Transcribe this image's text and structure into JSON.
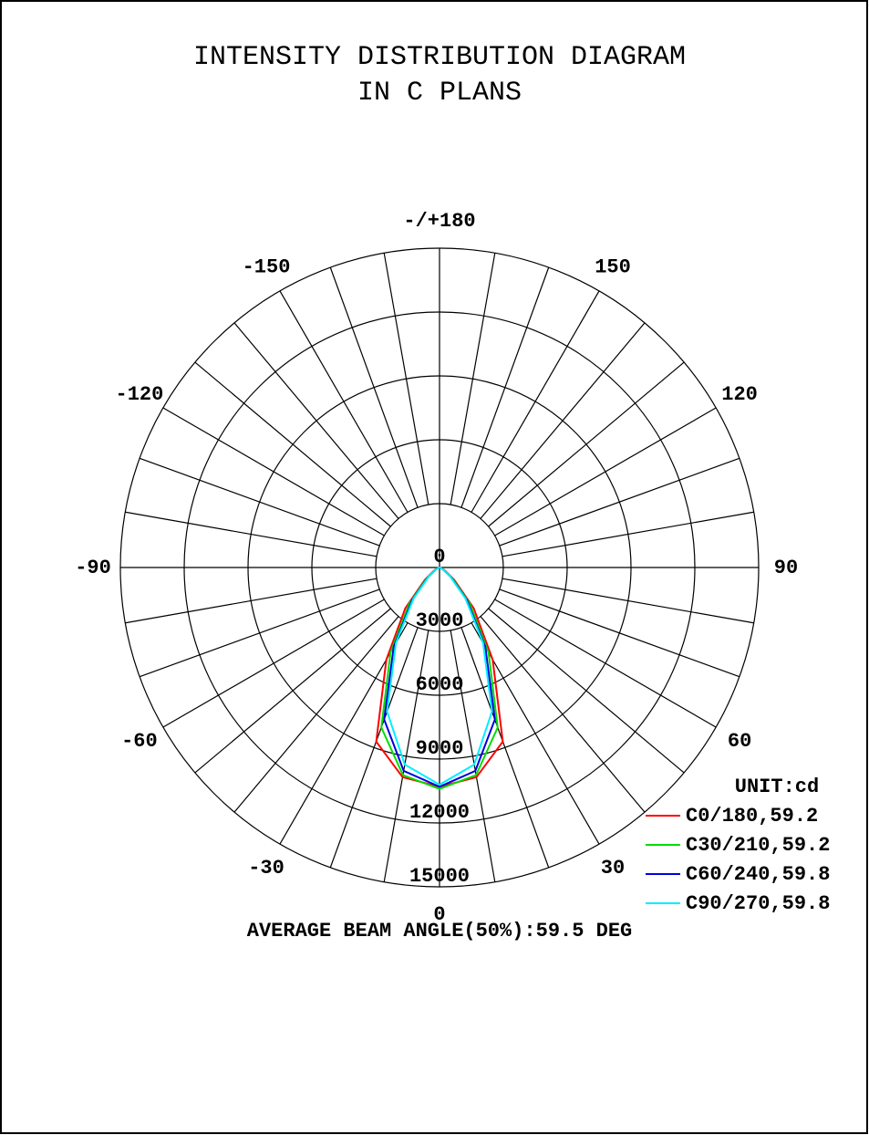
{
  "chart_data": {
    "type": "polar",
    "title": "INTENSITY DISTRIBUTION DIAGRAM",
    "subtitle": "IN C PLANS",
    "unit_label": "UNIT:cd",
    "footer": "AVERAGE BEAM ANGLE(50%):59.5 DEG",
    "rlim": [
      0,
      15000
    ],
    "rticks": [
      0,
      3000,
      6000,
      9000,
      12000,
      15000
    ],
    "thetaticks": [
      {
        "value": 180,
        "label": "-/+180"
      },
      -150,
      -120,
      -90,
      -60,
      -30,
      0,
      30,
      60,
      90,
      120,
      150
    ],
    "theta_grid_step": 10,
    "x": [
      -90,
      -80,
      -70,
      -60,
      -50,
      -40,
      -30,
      -20,
      -10,
      0,
      10,
      20,
      30,
      40,
      50,
      60,
      70,
      80,
      90
    ],
    "series": [
      {
        "name": "C0/180,59.2",
        "color": "#ff0000",
        "values": [
          0,
          0,
          100,
          300,
          900,
          2500,
          5000,
          8700,
          10000,
          10300,
          10000,
          8700,
          5000,
          2500,
          900,
          300,
          100,
          0,
          0
        ]
      },
      {
        "name": "C30/210,59.2",
        "color": "#00dd00",
        "values": [
          0,
          0,
          80,
          250,
          800,
          2200,
          4600,
          8000,
          9900,
          10400,
          9900,
          8000,
          4600,
          2200,
          800,
          250,
          80,
          0,
          0
        ]
      },
      {
        "name": "C60/240,59.8",
        "color": "#0000dd",
        "values": [
          0,
          0,
          70,
          220,
          700,
          2000,
          4300,
          7600,
          9700,
          10300,
          9700,
          7600,
          4300,
          2000,
          700,
          220,
          70,
          0,
          0
        ]
      },
      {
        "name": "C90/270,59.8",
        "color": "#00eeff",
        "values": [
          0,
          0,
          60,
          200,
          650,
          1900,
          4100,
          7200,
          9400,
          10200,
          9400,
          7200,
          4100,
          1900,
          650,
          200,
          60,
          0,
          0
        ]
      }
    ]
  }
}
